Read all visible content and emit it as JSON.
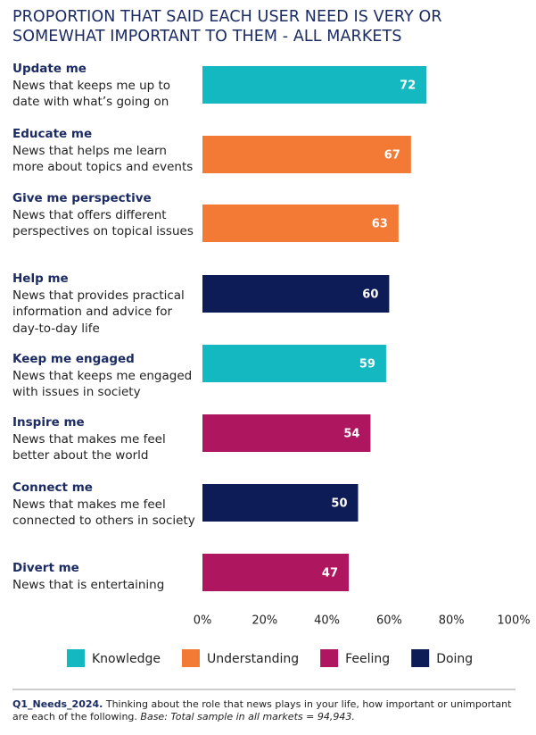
{
  "chart_data": {
    "type": "bar",
    "orientation": "horizontal",
    "title": "PROPORTION THAT SAID EACH USER NEED IS VERY OR SOMEWHAT IMPORTANT TO THEM - ALL MARKETS",
    "categories": [
      "Update me",
      "Educate me",
      "Give me perspective",
      "Help me",
      "Keep me engaged",
      "Inspire me",
      "Connect me",
      "Divert me"
    ],
    "descriptions": [
      "News that keeps me up to date with what’s going on",
      "News that helps me learn more about topics and events",
      "News that offers different perspectives on topical issues",
      "News that provides practical information and advice for day-to-day life",
      "News that keeps me engaged with issues in society",
      "News that makes me feel better about the world",
      "News that makes me feel connected to others in society",
      "News that is entertaining"
    ],
    "series": [
      {
        "name": "Knowledge",
        "color": "#14b8c0",
        "values": [
          72,
          null,
          null,
          null,
          59,
          null,
          null,
          null
        ]
      },
      {
        "name": "Understanding",
        "color": "#f37a35",
        "values": [
          null,
          67,
          63,
          null,
          null,
          null,
          null,
          null
        ]
      },
      {
        "name": "Feeling",
        "color": "#ae1760",
        "values": [
          null,
          null,
          null,
          null,
          null,
          54,
          null,
          47
        ]
      },
      {
        "name": "Doing",
        "color": "#0d1c57",
        "values": [
          null,
          null,
          null,
          60,
          null,
          null,
          50,
          null
        ]
      }
    ],
    "xlim": [
      0,
      100
    ],
    "xticks": [
      {
        "value": 0,
        "label": "0%"
      },
      {
        "value": 20,
        "label": "20%"
      },
      {
        "value": 40,
        "label": "40%"
      },
      {
        "value": 60,
        "label": "60%"
      },
      {
        "value": 80,
        "label": "80%"
      },
      {
        "value": 100,
        "label": "100%"
      }
    ],
    "footnote": {
      "code": "Q1_Needs_2024.",
      "text": "Thinking about the role that news plays in your life, how important or unimportant are each of the following.",
      "base": "Base: Total sample in all markets = 94,943."
    }
  }
}
